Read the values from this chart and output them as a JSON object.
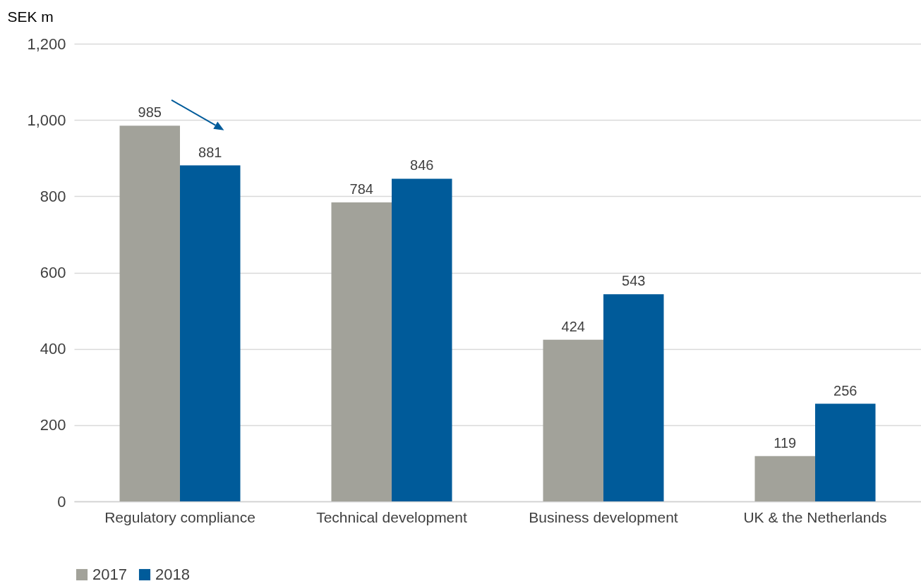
{
  "chart_data": {
    "type": "bar",
    "ylabel": "SEK m",
    "categories": [
      "Regulatory compliance",
      "Technical development",
      "Business development",
      "UK & the Netherlands"
    ],
    "series": [
      {
        "name": "2017",
        "color": "#a2a29a",
        "values": [
          985,
          784,
          424,
          119
        ]
      },
      {
        "name": "2018",
        "color": "#005b9a",
        "values": [
          881,
          846,
          543,
          256
        ]
      }
    ],
    "ylim": [
      0,
      1200
    ],
    "yticks": [
      {
        "value": 0,
        "label": "0"
      },
      {
        "value": 200,
        "label": "200"
      },
      {
        "value": 400,
        "label": "400"
      },
      {
        "value": 600,
        "label": "600"
      },
      {
        "value": 800,
        "label": "800"
      },
      {
        "value": 1000,
        "label": "1,000"
      },
      {
        "value": 1200,
        "label": "1,200"
      }
    ],
    "grid": "y",
    "legend": "bottom",
    "data_labels": true
  }
}
